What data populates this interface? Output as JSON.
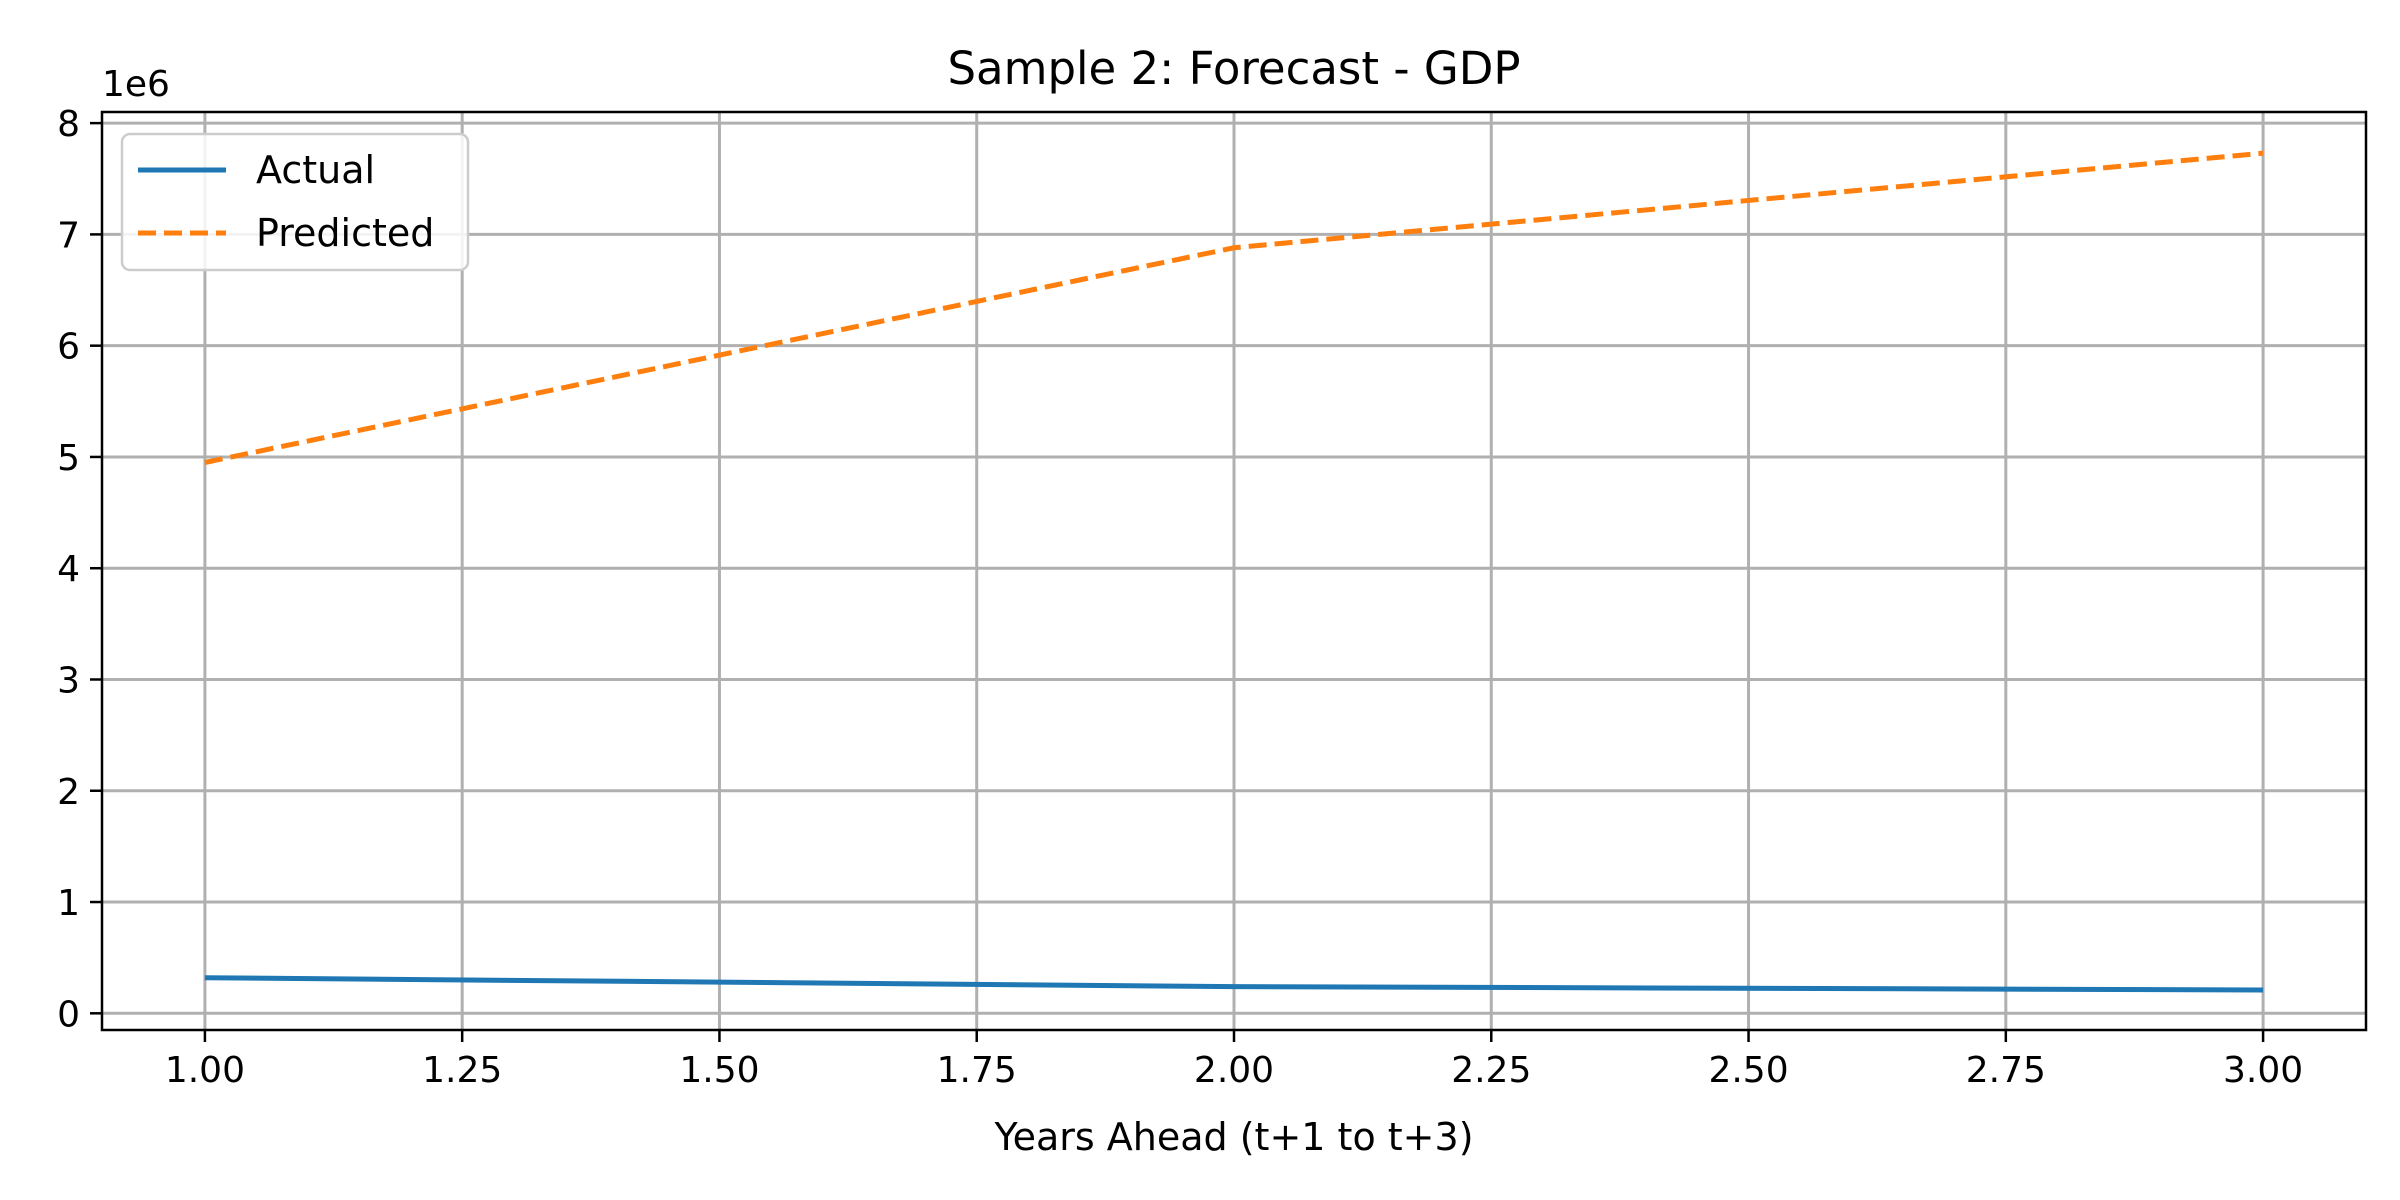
{
  "chart_data": {
    "type": "line",
    "title": "Sample 2: Forecast - GDP",
    "xlabel": "Years Ahead (t+1 to t+3)",
    "ylabel": "",
    "xlim": [
      0.9,
      3.1
    ],
    "ylim": [
      -0.15,
      8.1
    ],
    "y_multiplier_label": "1e6",
    "x_ticks": [
      1.0,
      1.25,
      1.5,
      1.75,
      2.0,
      2.25,
      2.5,
      2.75,
      3.0
    ],
    "x_tick_labels": [
      "1.00",
      "1.25",
      "1.50",
      "1.75",
      "2.00",
      "2.25",
      "2.50",
      "2.75",
      "3.00"
    ],
    "y_ticks": [
      0,
      1,
      2,
      3,
      4,
      5,
      6,
      7,
      8
    ],
    "y_tick_labels": [
      "0",
      "1",
      "2",
      "3",
      "4",
      "5",
      "6",
      "7",
      "8"
    ],
    "grid": true,
    "legend_position": "upper-left",
    "x": [
      1,
      2,
      3
    ],
    "series": [
      {
        "name": "Actual",
        "values": [
          0.32,
          0.24,
          0.21
        ],
        "color": "#1f77b4",
        "style": "solid"
      },
      {
        "name": "Predicted",
        "values": [
          4.95,
          6.88,
          7.73
        ],
        "color": "#ff7f0e",
        "style": "dashed"
      }
    ]
  }
}
